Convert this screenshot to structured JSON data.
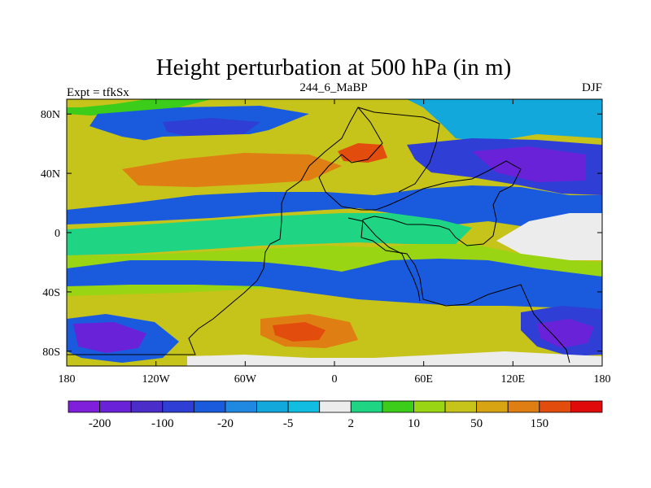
{
  "chart_data": {
    "type": "heatmap",
    "title": "Height perturbation at 500 hPa (in m)",
    "subtitle_left": "Expt = tfkSx",
    "subtitle_center": "244_6_MaBP",
    "subtitle_right": "DJF",
    "field": "500 hPa height perturbation",
    "units": "m",
    "projection": "cylindrical equidistant",
    "x_range": [
      -180,
      180
    ],
    "y_range": [
      -90,
      90
    ],
    "x_ticks": [
      {
        "value": -180,
        "label": "180"
      },
      {
        "value": -120,
        "label": "120W"
      },
      {
        "value": -60,
        "label": "60W"
      },
      {
        "value": 0,
        "label": "0"
      },
      {
        "value": 60,
        "label": "60E"
      },
      {
        "value": 120,
        "label": "120E"
      },
      {
        "value": 180,
        "label": "180"
      }
    ],
    "y_ticks": [
      {
        "value": 80,
        "label": "80N"
      },
      {
        "value": 40,
        "label": "40N"
      },
      {
        "value": 0,
        "label": "0"
      },
      {
        "value": -40,
        "label": "40S"
      },
      {
        "value": -80,
        "label": "80S"
      }
    ],
    "colorbar": {
      "levels": [
        -300,
        -200,
        -150,
        -100,
        -50,
        -20,
        -10,
        -5,
        -2,
        2,
        5,
        10,
        20,
        50,
        100,
        150,
        200
      ],
      "labels": [
        {
          "value": -200,
          "label": "-200"
        },
        {
          "value": -100,
          "label": "-100"
        },
        {
          "value": -20,
          "label": "-20"
        },
        {
          "value": -5,
          "label": "-5"
        },
        {
          "value": 2,
          "label": "2"
        },
        {
          "value": 10,
          "label": "10"
        },
        {
          "value": 50,
          "label": "50"
        },
        {
          "value": 150,
          "label": "150"
        }
      ],
      "colors": [
        "#7f1fdc",
        "#6a22d8",
        "#4b2dc9",
        "#2f3fd6",
        "#1a5bde",
        "#1f88e0",
        "#12a8db",
        "#11bde0",
        "#ececec",
        "#1fd483",
        "#3ccd1a",
        "#9ad514",
        "#c6c31a",
        "#d8a414",
        "#df7e12",
        "#e24c0d",
        "#e00a0a"
      ]
    },
    "fill_colors": {
      "neg_center": "#6a22d8",
      "neg_strong": "#2f3fd6",
      "neg_medium": "#1a5bde",
      "neg_light": "#12a8db",
      "neutral": "#ececec",
      "pos_light": "#1fd483",
      "pos_medium": "#3ccd1a",
      "pos_strong": "#9ad514",
      "pos_yellow": "#c6c31a",
      "pos_orange": "#df7e12",
      "pos_red": "#e24c0d"
    }
  }
}
